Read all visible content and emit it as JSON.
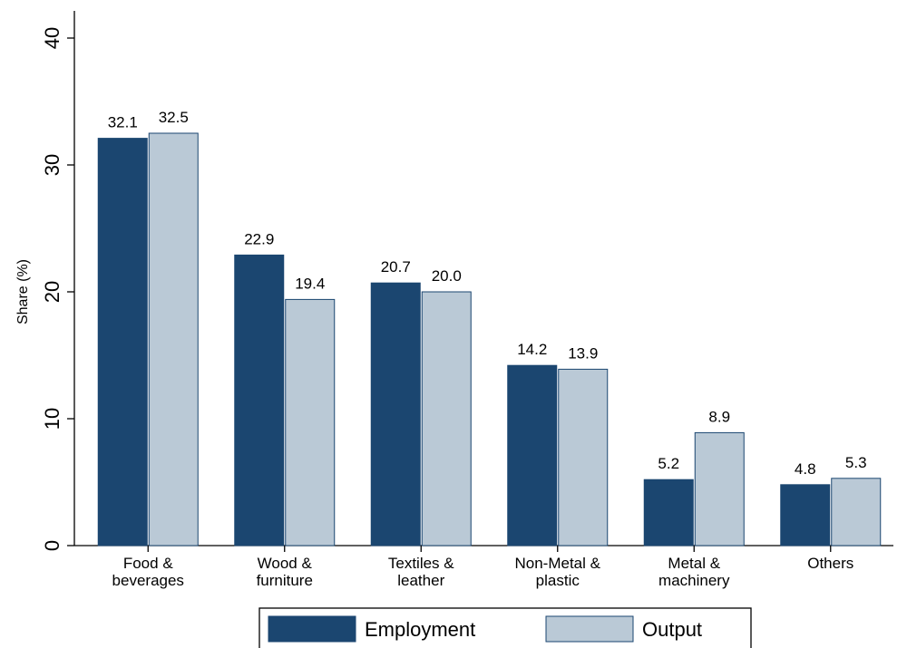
{
  "chart_data": {
    "type": "bar",
    "categories": [
      [
        "Food &",
        "beverages"
      ],
      [
        "Wood &",
        "furniture"
      ],
      [
        "Textiles &",
        "leather"
      ],
      [
        "Non-Metal &",
        "plastic"
      ],
      [
        "Metal &",
        "machinery"
      ],
      [
        "Others"
      ]
    ],
    "series": [
      {
        "name": "Employment",
        "color": "#1b4670",
        "values": [
          32.1,
          22.9,
          20.7,
          14.2,
          5.2,
          4.8
        ],
        "labels": [
          "32.1",
          "22.9",
          "20.7",
          "14.2",
          "5.2",
          "4.8"
        ]
      },
      {
        "name": "Output",
        "color": "#bac9d6",
        "values": [
          32.5,
          19.4,
          20.0,
          13.9,
          8.9,
          5.3
        ],
        "labels": [
          "32.5",
          "19.4",
          "20.0",
          "13.9",
          "8.9",
          "5.3"
        ]
      }
    ],
    "title": "",
    "xlabel": "",
    "ylabel": "Share (%)",
    "ylim": [
      0,
      40
    ],
    "yticks": [
      "0",
      "10",
      "20",
      "30",
      "40"
    ],
    "grid": false,
    "legend_position": "bottom"
  }
}
